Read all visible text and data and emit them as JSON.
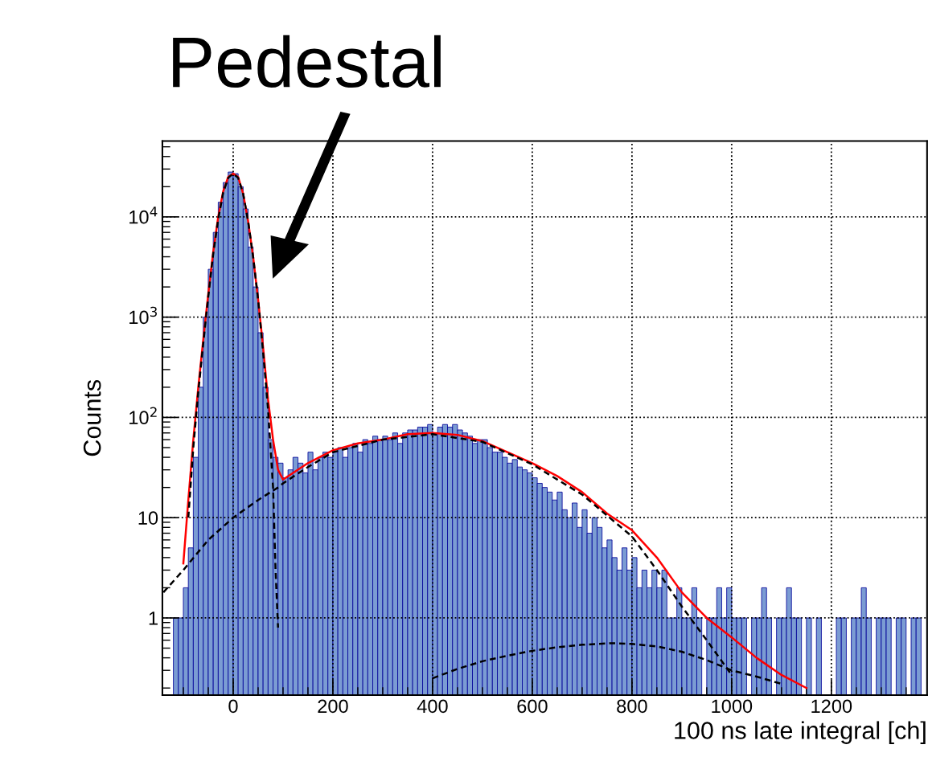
{
  "chart_data": {
    "type": "histogram",
    "annotations": [
      "Pedestal"
    ],
    "xlabel": "100 ns late integral [ch]",
    "ylabel": "Counts",
    "color": "#7b9cd3",
    "bins": [
      -140,
      -130,
      -120,
      -110,
      -100,
      -90,
      -80,
      -70,
      -60,
      -50,
      -40,
      -30,
      -20,
      -10,
      0,
      10,
      20,
      30,
      40,
      50,
      60,
      70,
      80,
      90,
      100,
      110,
      120,
      130,
      140,
      150,
      160,
      170,
      180,
      190,
      200,
      210,
      220,
      230,
      240,
      250,
      260,
      270,
      280,
      290,
      300,
      310,
      320,
      330,
      340,
      350,
      360,
      370,
      380,
      390,
      400,
      410,
      420,
      430,
      440,
      450,
      460,
      470,
      480,
      490,
      500,
      510,
      520,
      530,
      540,
      550,
      560,
      570,
      580,
      590,
      600,
      610,
      620,
      630,
      640,
      650,
      660,
      670,
      680,
      690,
      700,
      710,
      720,
      730,
      740,
      750,
      760,
      770,
      780,
      790,
      800,
      810,
      820,
      830,
      840,
      850,
      860,
      870,
      880,
      890,
      900,
      910,
      920,
      930,
      940,
      950,
      960,
      970,
      980,
      990,
      1000,
      1010,
      1020,
      1030,
      1040,
      1050,
      1060,
      1070,
      1080,
      1090,
      1100,
      1110,
      1120,
      1130,
      1140,
      1150,
      1160,
      1170,
      1180,
      1190,
      1200,
      1210,
      1220,
      1230,
      1240,
      1250,
      1260,
      1270,
      1280,
      1290,
      1300,
      1310,
      1320,
      1330,
      1340,
      1350,
      1360,
      1370,
      1380,
      1390
    ],
    "values": [
      null,
      null,
      1,
      1,
      2,
      5,
      40,
      200,
      1000,
      3000,
      7000,
      14000,
      22000,
      28000,
      27000,
      20000,
      12000,
      5000,
      2000,
      700,
      200,
      60,
      40,
      35,
      25,
      30,
      40,
      35,
      28,
      45,
      30,
      40,
      45,
      40,
      45,
      50,
      40,
      50,
      55,
      45,
      60,
      55,
      65,
      60,
      65,
      60,
      70,
      55,
      70,
      75,
      75,
      80,
      80,
      85,
      70,
      80,
      85,
      80,
      85,
      75,
      70,
      65,
      55,
      60,
      60,
      50,
      45,
      45,
      40,
      35,
      38,
      32,
      30,
      28,
      25,
      22,
      20,
      18,
      15,
      18,
      12,
      10,
      14,
      8,
      12,
      7,
      10,
      8,
      5,
      6,
      4,
      3,
      5,
      3,
      4,
      2,
      3,
      2,
      3,
      2,
      3,
      1,
      1,
      2,
      1,
      1,
      2,
      1,
      null,
      1,
      1,
      2,
      1,
      2,
      1,
      1,
      1,
      null,
      1,
      1,
      2,
      1,
      null,
      1,
      1,
      2,
      1,
      1,
      null,
      1,
      null,
      1,
      null,
      null,
      null,
      1,
      1,
      null,
      1,
      1,
      2,
      1,
      null,
      1,
      1,
      1,
      null,
      1,
      1,
      null,
      1,
      1,
      null
    ],
    "series": [
      {
        "type": "line",
        "color": "#ff0000",
        "line_style": "solid",
        "x": [
          -100,
          -90,
          -80,
          -70,
          -60,
          -50,
          -40,
          -30,
          -20,
          -10,
          0,
          10,
          20,
          30,
          40,
          50,
          60,
          70,
          80,
          90,
          100,
          150,
          200,
          250,
          300,
          350,
          400,
          450,
          500,
          550,
          600,
          650,
          700,
          750,
          800,
          850,
          900,
          950,
          1000,
          1050,
          1100,
          1150
        ],
        "values": [
          3.5,
          15,
          60,
          200,
          600,
          1700,
          4500,
          10000,
          18000,
          25000,
          27000,
          25000,
          17000,
          9000,
          4000,
          1500,
          500,
          150,
          60,
          30,
          24,
          35,
          47,
          55,
          60,
          68,
          70,
          67,
          58,
          45,
          35,
          26,
          18,
          11,
          7.5,
          4,
          1.8,
          1,
          0.64,
          0.4,
          0.27,
          0.2
        ]
      },
      {
        "type": "line",
        "color": "#000000",
        "line_style": "dashed",
        "x": [
          -90,
          -80,
          -70,
          -60,
          -50,
          -40,
          -30,
          -20,
          -10,
          0,
          10,
          20,
          30,
          40,
          50,
          60,
          70,
          80,
          85,
          90
        ],
        "values": [
          10,
          50,
          180,
          550,
          1600,
          4300,
          9500,
          17500,
          24500,
          27000,
          24500,
          17000,
          9000,
          4000,
          1500,
          450,
          120,
          20,
          3,
          0.8
        ]
      },
      {
        "type": "line",
        "color": "#000000",
        "line_style": "dashed",
        "x": [
          -140,
          -100,
          -50,
          0,
          50,
          90,
          100,
          150,
          200,
          300,
          400,
          500,
          600,
          700,
          800,
          850,
          900,
          950,
          1000
        ],
        "values": [
          1.8,
          3,
          6,
          10,
          15,
          20,
          22,
          32,
          45,
          60,
          68,
          57,
          34,
          17,
          6.5,
          3,
          1.3,
          0.6,
          0.27
        ]
      },
      {
        "type": "line",
        "color": "#000000",
        "line_style": "dashed",
        "x": [
          400,
          450,
          500,
          550,
          600,
          650,
          700,
          760,
          800,
          850,
          900,
          950,
          1000,
          1050,
          1100
        ],
        "values": [
          0.25,
          0.31,
          0.37,
          0.42,
          0.47,
          0.51,
          0.54,
          0.56,
          0.55,
          0.52,
          0.46,
          0.38,
          0.3,
          0.26,
          0.22
        ]
      }
    ],
    "log": "y",
    "xlim": [
      -142,
      1392
    ],
    "ylim": [
      0.17,
      57000
    ],
    "xticks": [
      0,
      200,
      400,
      600,
      800,
      1000,
      1200
    ],
    "yticks": [
      1,
      10,
      {
        "value": 100,
        "label": "10$^{2}$"
      },
      {
        "value": 1000,
        "label": "10$^{3}$"
      },
      {
        "value": 10000,
        "label": "10$^{4}$"
      }
    ],
    "grid": true,
    "legend": false
  }
}
